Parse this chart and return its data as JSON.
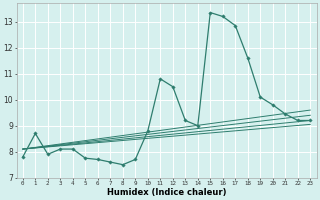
{
  "xlabel": "Humidex (Indice chaleur)",
  "bg_color": "#d6f0ee",
  "line_color": "#2e7d6e",
  "grid_color": "#ffffff",
  "xlim": [
    -0.5,
    23.5
  ],
  "ylim": [
    7.0,
    13.7
  ],
  "yticks": [
    7,
    8,
    9,
    10,
    11,
    12,
    13
  ],
  "xticks": [
    0,
    1,
    2,
    3,
    4,
    5,
    6,
    7,
    8,
    9,
    10,
    11,
    12,
    13,
    14,
    15,
    16,
    17,
    18,
    19,
    20,
    21,
    22,
    23
  ],
  "series": [
    [
      0,
      7.8
    ],
    [
      1,
      8.7
    ],
    [
      2,
      7.9
    ],
    [
      3,
      8.1
    ],
    [
      4,
      8.1
    ],
    [
      5,
      7.75
    ],
    [
      6,
      7.7
    ],
    [
      7,
      7.6
    ],
    [
      8,
      7.5
    ],
    [
      9,
      7.7
    ],
    [
      10,
      8.8
    ],
    [
      11,
      10.8
    ],
    [
      12,
      10.5
    ],
    [
      13,
      9.2
    ],
    [
      14,
      9.0
    ],
    [
      15,
      13.35
    ],
    [
      16,
      13.2
    ],
    [
      17,
      12.85
    ],
    [
      18,
      11.6
    ],
    [
      19,
      10.1
    ],
    [
      20,
      9.8
    ],
    [
      21,
      9.45
    ],
    [
      22,
      9.2
    ],
    [
      23,
      9.2
    ]
  ],
  "extra_lines": [
    [
      [
        0,
        8.1
      ],
      [
        23,
        9.05
      ]
    ],
    [
      [
        0,
        8.1
      ],
      [
        23,
        9.2
      ]
    ],
    [
      [
        0,
        8.1
      ],
      [
        23,
        9.4
      ]
    ],
    [
      [
        0,
        8.1
      ],
      [
        23,
        9.6
      ]
    ]
  ]
}
